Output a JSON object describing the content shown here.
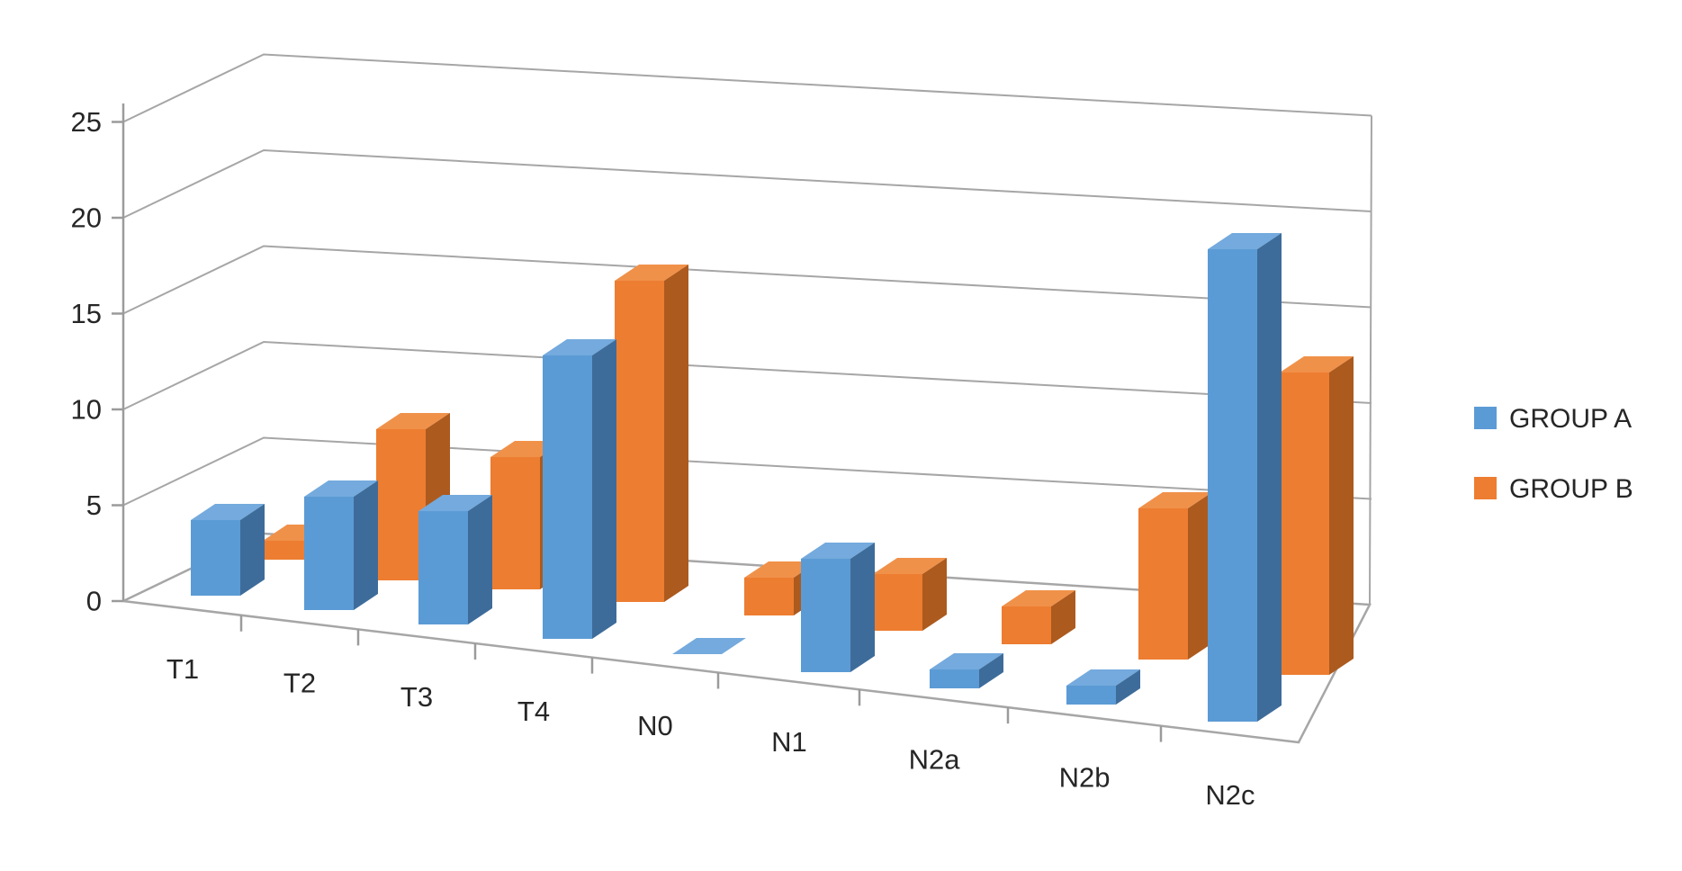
{
  "chart_data": {
    "type": "bar",
    "style": "3d-clustered-column",
    "title": "",
    "xlabel": "",
    "ylabel": "",
    "categories": [
      "T1",
      "T2",
      "T3",
      "T4",
      "N0",
      "N1",
      "N2a",
      "N2b",
      "N2c"
    ],
    "series": [
      {
        "name": "GROUP A",
        "values": [
          4,
          6,
          6,
          15,
          0,
          6,
          1,
          1,
          25
        ]
      },
      {
        "name": "GROUP B",
        "values": [
          1,
          8,
          7,
          17,
          2,
          3,
          2,
          8,
          16
        ]
      }
    ],
    "ylim": [
      0,
      25
    ],
    "ytick_step": 5,
    "ytick_labels": [
      "0",
      "5",
      "10",
      "15",
      "20",
      "25"
    ],
    "grid": true,
    "legend_position": "right",
    "palette": {
      "GROUP A": {
        "front": "#5B9BD5",
        "top": "#74AADD",
        "side": "#3E6C9A"
      },
      "GROUP B": {
        "front": "#ED7D31",
        "top": "#F0914A",
        "side": "#AC5A1E"
      },
      "gridline": "#A6A6A6",
      "axis_line": "#9B9B9B",
      "text": "#262626",
      "background": "#FFFFFF"
    }
  }
}
